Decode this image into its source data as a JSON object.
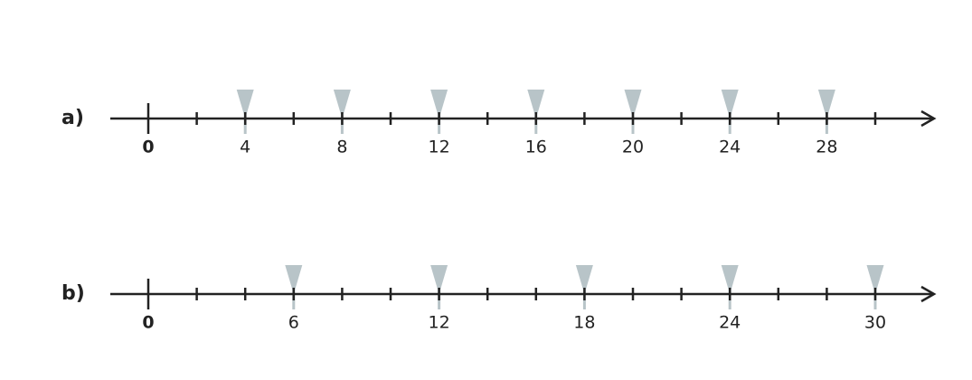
{
  "number_lines": [
    {
      "label": "a)",
      "ticks": [
        0,
        2,
        4,
        6,
        8,
        10,
        12,
        14,
        16,
        18,
        20,
        22,
        24,
        26,
        28,
        30
      ],
      "labels": [
        0,
        4,
        8,
        12,
        16,
        20,
        24,
        28
      ],
      "markers": [
        4,
        8,
        12,
        16,
        20,
        24,
        28
      ]
    },
    {
      "label": "b)",
      "ticks": [
        0,
        2,
        4,
        6,
        8,
        10,
        12,
        14,
        16,
        18,
        20,
        22,
        24,
        26,
        28,
        30
      ],
      "labels": [
        0,
        6,
        12,
        18,
        24,
        30
      ],
      "markers": [
        6,
        12,
        18,
        24,
        30
      ]
    }
  ]
}
